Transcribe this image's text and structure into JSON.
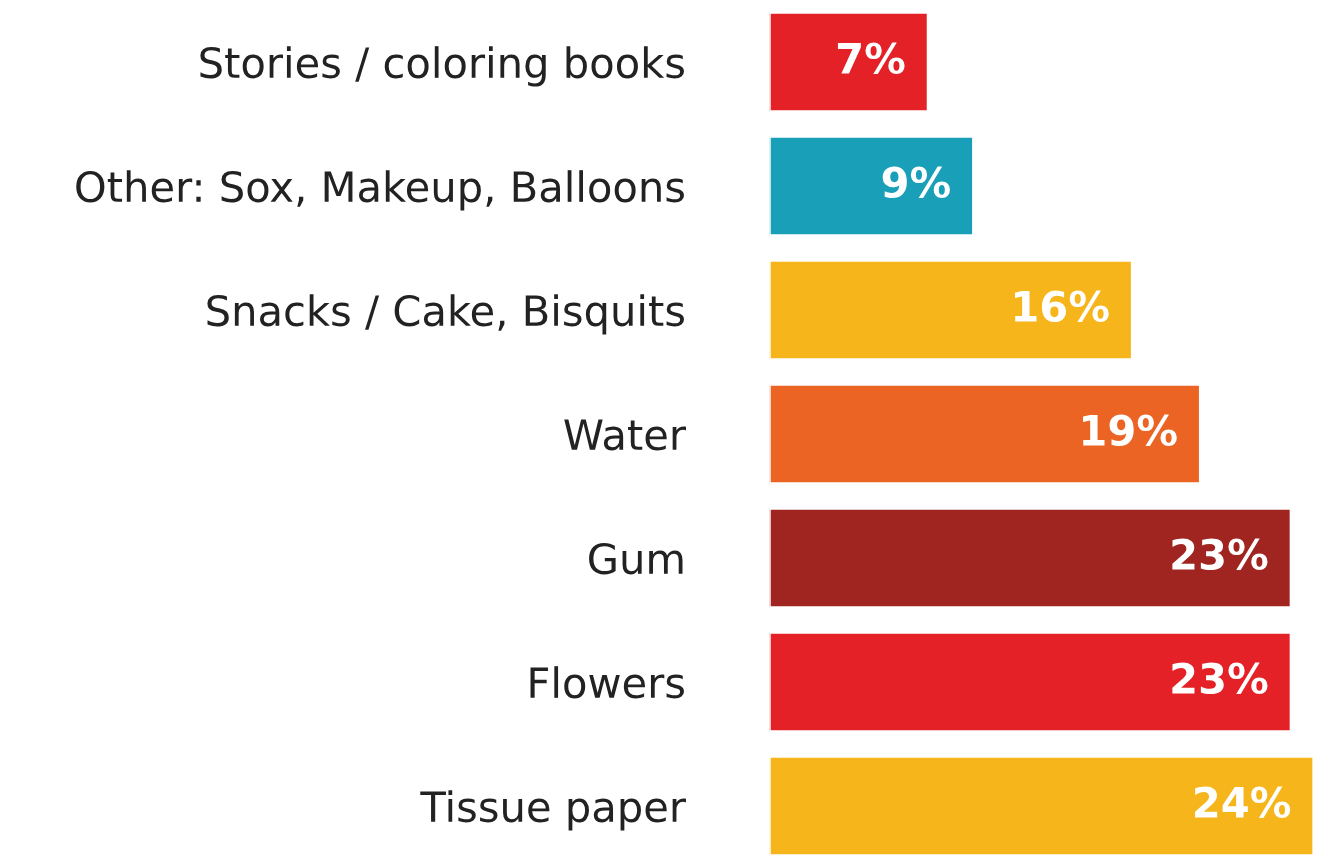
{
  "chart_data": {
    "type": "bar",
    "orientation": "horizontal",
    "categories": [
      "Stories / coloring books",
      "Other: Sox, Makeup, Balloons",
      "Snacks / Cake, Bisquits",
      "Water",
      "Gum",
      "Flowers",
      "Tissue paper"
    ],
    "values": [
      7,
      9,
      16,
      19,
      23,
      23,
      24
    ],
    "value_labels": [
      "7%",
      "9%",
      "16%",
      "19%",
      "23%",
      "23%",
      "24%"
    ],
    "colors": [
      "#e42127",
      "#1a9fb8",
      "#f6b51a",
      "#ec6424",
      "#a0241f",
      "#e42127",
      "#f6b51a"
    ],
    "grid": false,
    "legend": false
  }
}
